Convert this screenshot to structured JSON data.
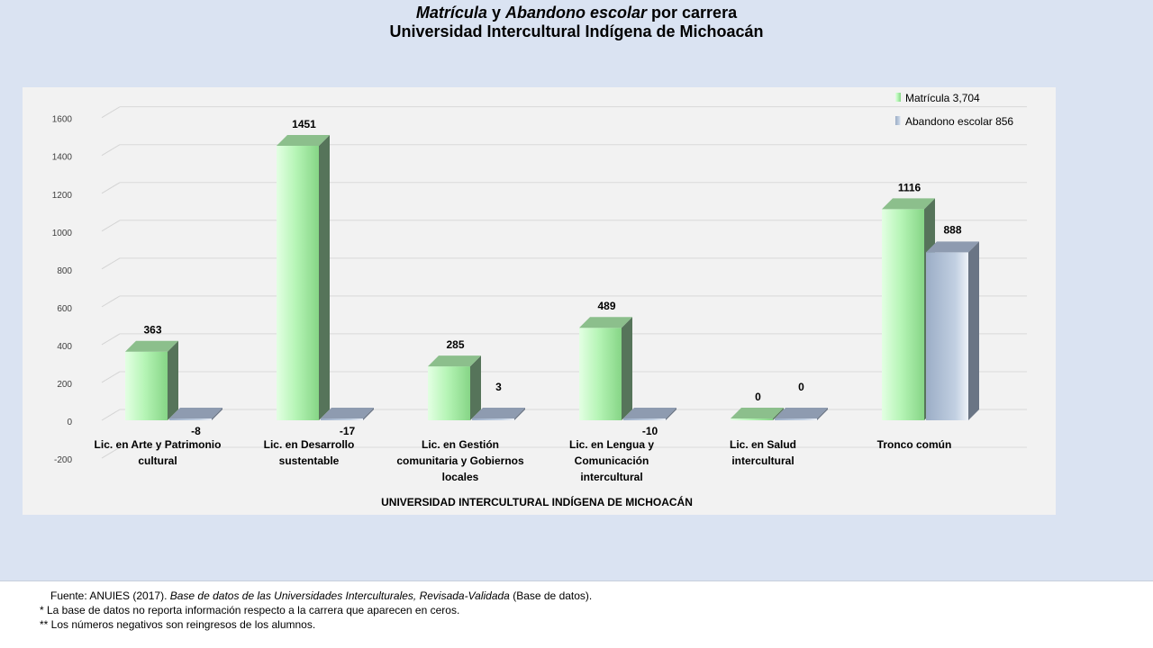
{
  "title": {
    "line1_a": "Matrícula",
    "line1_b": "y",
    "line1_c": "Abandono escolar",
    "line1_d": "por carrera",
    "line2": "Universidad Intercultural Indígena de Michoacán"
  },
  "footer": {
    "source_prefix": "Fuente: ANUIES  (2017).",
    "source_title": "Base de datos de las Universidades  Interculturales, Revisada-Validada",
    "source_suffix": "(Base de datos).",
    "note1": "* La base de datos no reporta información respecto a la carrera que aparecen en ceros.",
    "note2": "** Los números negativos  son reingresos de los alumnos."
  },
  "colors": {
    "slide_bg": "#dae3f2",
    "plot_bg": "#f2f2f2",
    "matricula": "#b6f5b6",
    "abandono": "#a7b9d1"
  },
  "chart_data": {
    "type": "bar",
    "style": "3d-clustered-column",
    "xlabel": "UNIVERSIDAD INTERCULTURAL INDÍGENA DE MICHOACÁN",
    "ylabel": "",
    "ylim": [
      -200,
      1600
    ],
    "yticks": [
      -200,
      0,
      200,
      400,
      600,
      800,
      1000,
      1200,
      1400,
      1600
    ],
    "grid": true,
    "legend": "top-right",
    "categories": [
      [
        "Lic. en Arte y Patrimonio",
        "cultural"
      ],
      [
        "Lic. en Desarrollo",
        "sustentable"
      ],
      [
        "Lic. en Gestión",
        "comunitaria y Gobiernos",
        "locales"
      ],
      [
        "Lic. en Lengua y",
        "Comunicación",
        "intercultural"
      ],
      [
        "Lic. en Salud",
        "intercultural"
      ],
      [
        "Tronco común"
      ]
    ],
    "series": [
      {
        "name": "Matrícula  3,704",
        "values": [
          363,
          1451,
          285,
          489,
          0,
          1116
        ]
      },
      {
        "name": "Abandono escolar  856",
        "values": [
          -8,
          -17,
          3,
          -10,
          0,
          888
        ]
      }
    ]
  }
}
